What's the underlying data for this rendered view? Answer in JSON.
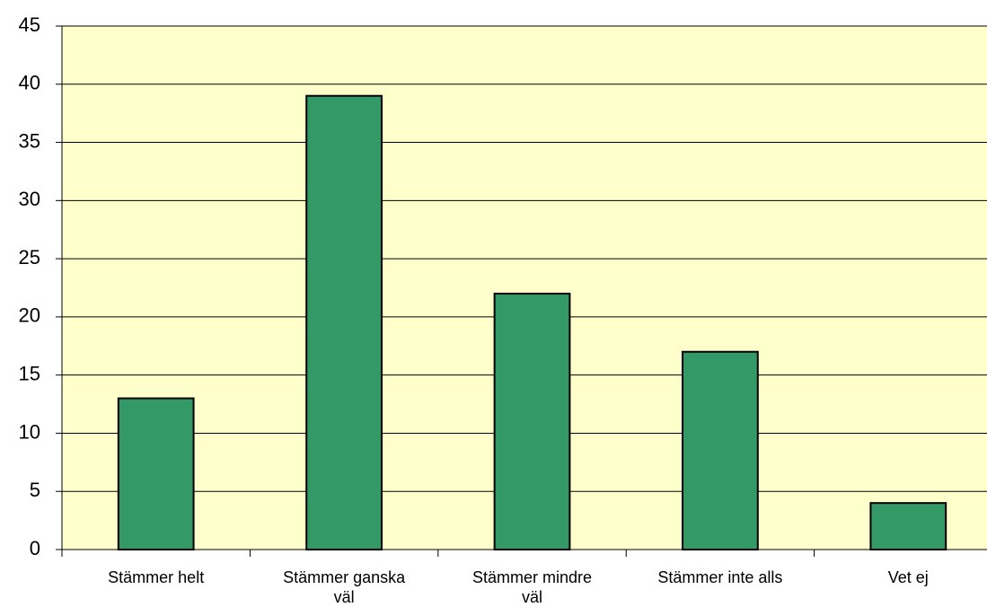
{
  "chart_data": {
    "type": "bar",
    "categories": [
      "Stämmer helt",
      "Stämmer ganska väl",
      "Stämmer mindre väl",
      "Stämmer inte alls",
      "Vet ej"
    ],
    "values": [
      13,
      39,
      22,
      17,
      4
    ],
    "color": "#339966",
    "ylim": [
      0,
      45
    ],
    "yticks": [
      0,
      5,
      10,
      15,
      20,
      25,
      30,
      35,
      40,
      45
    ],
    "grid": true
  }
}
